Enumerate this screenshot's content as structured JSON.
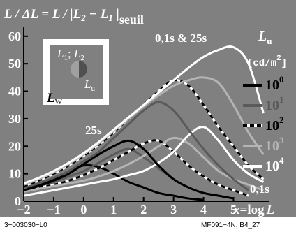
{
  "chart_data": {
    "type": "line",
    "title_main": "L / ΔL = L / |L",
    "title_sub2": "2",
    "title_mid": " − L",
    "title_sub1": "1",
    "title_end": " |",
    "title_seuil": "seuil",
    "top_annotation": "0,1s & 25s",
    "label_25s": "25s",
    "label_01s": "0,1s",
    "xlabel_x": "x",
    "xlabel_eq": "=log",
    "xlabel_L": "L",
    "xticks": [
      -2,
      -1,
      0,
      1,
      2,
      3,
      4,
      5
    ],
    "yticks": [
      0,
      10,
      20,
      30,
      40,
      50,
      60
    ],
    "xlim": [
      -2,
      6.2
    ],
    "ylim": [
      0,
      63
    ],
    "legend": {
      "title": "L",
      "title_sub": "u",
      "unit": "[cd/m",
      "unit_sup": "2",
      "unit_end": "]",
      "entries": [
        {
          "base": "10",
          "exp": "0",
          "color": "#000000",
          "dash": false
        },
        {
          "base": "10",
          "exp": "1",
          "color": "#5a5a5a",
          "dash": false
        },
        {
          "base": "10",
          "exp": "2",
          "color": "#000000",
          "dash": true
        },
        {
          "base": "10",
          "exp": "3",
          "color": "#b4b4b4",
          "dash": false
        },
        {
          "base": "10",
          "exp": "4",
          "color": "#ffffff",
          "dash": false
        }
      ]
    },
    "inset": {
      "L1": "L",
      "L1sub": "1",
      "sep": "; ",
      "L2": "L",
      "L2sub": "2",
      "Lu": "L",
      "Lusub": "u",
      "Lw": "L",
      "Lwsub": "W"
    },
    "series_25s": [
      {
        "name": "10^0",
        "color": "#000000",
        "dash": false,
        "x": [
          -2,
          -1.5,
          -1,
          -0.5,
          0,
          0.5,
          1,
          1.5,
          2,
          2.5,
          3,
          3.5,
          4
        ],
        "y": [
          4,
          6,
          8,
          11,
          13,
          12.5,
          10,
          7,
          5,
          3,
          2,
          1,
          0.5
        ]
      },
      {
        "name": "10^1",
        "color": "#5a5a5a",
        "dash": false,
        "x": [
          -2,
          -1.5,
          -1,
          -0.5,
          0,
          0.5,
          1,
          1.5,
          2,
          2.5,
          3,
          3.5,
          4,
          4.5,
          5
        ],
        "y": [
          4,
          5.5,
          7,
          9,
          11,
          14,
          17,
          19,
          16,
          12,
          8,
          5,
          3,
          2,
          1
        ]
      },
      {
        "name": "10^2",
        "color": "#000000",
        "dash": true,
        "x": [
          -2,
          -1.5,
          -1,
          -0.5,
          0,
          0.5,
          1,
          1.5,
          2,
          2.5,
          3,
          3.5,
          4,
          4.5,
          5,
          5.5
        ],
        "y": [
          4,
          5,
          6,
          7.5,
          9.5,
          12,
          15,
          18,
          21,
          22,
          18,
          13,
          9,
          6,
          4,
          2
        ]
      },
      {
        "name": "10^3",
        "color": "#b4b4b4",
        "dash": false,
        "x": [
          -2,
          -1.5,
          -1,
          -0.5,
          0,
          0.5,
          1,
          1.5,
          2,
          2.5,
          3,
          3.5,
          4,
          4.5,
          5,
          5.5,
          6
        ],
        "y": [
          3.5,
          4.5,
          5.5,
          6.5,
          7.5,
          9,
          11,
          13.5,
          16.5,
          20,
          23,
          21,
          16,
          11,
          8,
          6,
          4
        ]
      },
      {
        "name": "10^4",
        "color": "#ffffff",
        "dash": false,
        "x": [
          -2,
          -1.5,
          -1,
          -0.5,
          0,
          0.5,
          1,
          1.5,
          2,
          2.5,
          3,
          3.5,
          4,
          4.5,
          5,
          5.5,
          6
        ],
        "y": [
          2,
          3,
          4,
          5,
          6,
          7,
          8,
          9.5,
          11,
          14,
          18,
          24,
          27,
          22,
          15,
          10,
          7
        ]
      }
    ],
    "series_01s": [
      {
        "name": "10^0",
        "color": "#000000",
        "dash": false,
        "x": [
          -2,
          -1.5,
          -1,
          -0.5,
          0,
          0.5,
          1,
          1.5,
          2,
          2.5,
          3,
          3.5,
          4,
          4.5,
          5
        ],
        "y": [
          4,
          5.5,
          7.5,
          10,
          13.5,
          17,
          20,
          22,
          19,
          13,
          8,
          5,
          3,
          2,
          1
        ]
      },
      {
        "name": "10^1",
        "color": "#5a5a5a",
        "dash": false,
        "x": [
          -2,
          -1.5,
          -1,
          -0.5,
          0,
          0.5,
          1,
          1.5,
          2,
          2.5,
          3,
          3.5,
          4,
          4.5,
          5,
          5.5
        ],
        "y": [
          5,
          6.5,
          8.5,
          11,
          14.5,
          18,
          23,
          28,
          33,
          36,
          33,
          26,
          19,
          13,
          8,
          4
        ]
      },
      {
        "name": "10^2",
        "color": "#000000",
        "dash": true,
        "x": [
          -2,
          -1.5,
          -1,
          -0.5,
          0,
          0.5,
          1,
          1.5,
          2,
          2.5,
          3,
          3.5,
          4,
          4.5,
          5,
          5.5,
          6
        ],
        "y": [
          5.5,
          7.5,
          10,
          13,
          16.5,
          20.5,
          25,
          30,
          35,
          40,
          44,
          42,
          35,
          27,
          20,
          13,
          8
        ]
      },
      {
        "name": "10^3",
        "color": "#b4b4b4",
        "dash": false,
        "x": [
          -2,
          -1.5,
          -1,
          -0.5,
          0,
          0.5,
          1,
          1.5,
          2,
          2.5,
          3,
          3.5,
          4,
          4.5,
          5,
          5.5,
          6
        ],
        "y": [
          6,
          8,
          10.5,
          13.5,
          17,
          21,
          25.5,
          30,
          34.5,
          38.5,
          42,
          44,
          45,
          43,
          35,
          25,
          17
        ]
      },
      {
        "name": "10^4",
        "color": "#ffffff",
        "dash": false,
        "x": [
          -2,
          -1.5,
          -1,
          -0.5,
          0,
          0.5,
          1,
          1.5,
          2,
          2.5,
          3,
          3.5,
          4,
          4.5,
          5,
          5.5,
          6
        ],
        "y": [
          6.5,
          8.5,
          11,
          14,
          17.5,
          21.5,
          26,
          30.5,
          35,
          39.5,
          44,
          48.5,
          52.5,
          55,
          56,
          50,
          32
        ]
      }
    ]
  },
  "footer_left": "3−003030−L0",
  "footer_right": "MF091−4N, B4_27",
  "colors": {
    "background": "#808080",
    "page": "#ffffff"
  }
}
